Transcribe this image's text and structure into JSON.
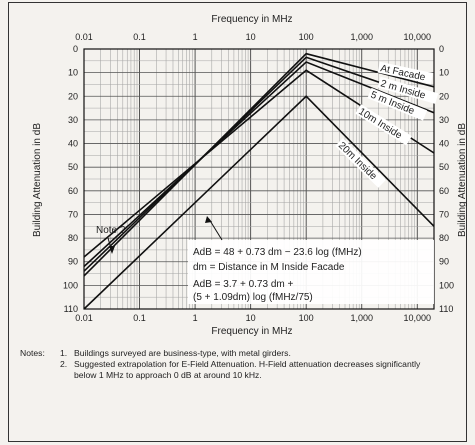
{
  "chart_data": {
    "type": "line",
    "xlabel_top": "Frequency in MHz",
    "xlabel": "Frequency in MHz",
    "ylabel": "Building Attenuation in dB",
    "ylabel_right": "Building Attenuation in dB",
    "x_scale": "log",
    "xlim": [
      0.01,
      20000
    ],
    "ylim": [
      110,
      0
    ],
    "y_inverted": true,
    "x_ticks": [
      0.01,
      0.1,
      1,
      10,
      100,
      1000,
      10000
    ],
    "x_tick_labels": [
      "0.01",
      "0.1",
      "1",
      "10",
      "100",
      "1,000",
      "10,000"
    ],
    "y_ticks": [
      0,
      10,
      20,
      30,
      40,
      50,
      60,
      70,
      80,
      90,
      100,
      110
    ],
    "y_tick_labels": [
      "0",
      "10",
      "20",
      "30",
      "40",
      "50",
      "60",
      "70",
      "80",
      "90",
      "100",
      "110"
    ],
    "grid": true,
    "series": [
      {
        "name": "At Facade",
        "x": [
          0.01,
          100,
          20000
        ],
        "y": [
          96,
          2,
          16
        ]
      },
      {
        "name": "2 m Inside",
        "x": [
          0.01,
          100,
          20000
        ],
        "y": [
          94,
          3.5,
          22
        ]
      },
      {
        "name": "5 m Inside",
        "x": [
          0.01,
          100,
          20000
        ],
        "y": [
          92,
          5.5,
          27
        ]
      },
      {
        "name": "10m Inside",
        "x": [
          0.01,
          100,
          20000
        ],
        "y": [
          88,
          9,
          44
        ]
      },
      {
        "name": "20m Inside",
        "x": [
          0.01,
          100,
          20000
        ],
        "y": [
          110,
          20,
          75
        ]
      }
    ],
    "annotations": [
      {
        "id": "note2",
        "text": "Note 2"
      },
      {
        "id": "formula1a",
        "text": "AdB = 48 + 0.73 dm − 23.6 log (fMHz)"
      },
      {
        "id": "formula1b",
        "text": "dm = Distance in M Inside Facade"
      },
      {
        "id": "formula2a",
        "text": "AdB = 3.7 + 0.73 dm +"
      },
      {
        "id": "formula2b",
        "text": "(5 + 1.09dm) log (fMHz/75)"
      }
    ]
  },
  "notes": {
    "label": "Notes:",
    "items": [
      {
        "num": "1.",
        "text": "Buildings surveyed are business-type, with metal girders."
      },
      {
        "num": "2.",
        "text": "Suggested extrapolation for E-Field Attenuation. H-Field attenuation decreases significantly below 1 MHz to approach 0 dB at around 10 kHz."
      }
    ]
  }
}
